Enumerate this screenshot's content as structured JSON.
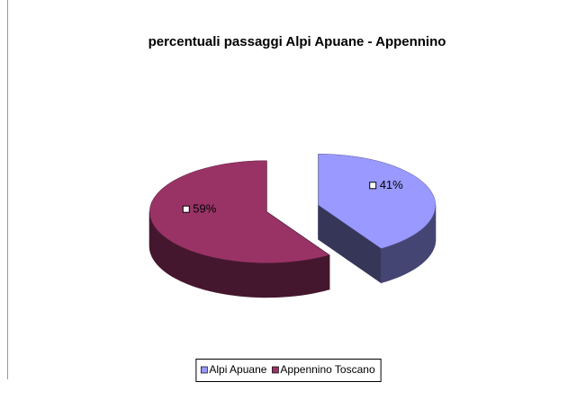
{
  "chart_data": {
    "type": "pie3d",
    "title": "percentuali passaggi Alpi Apuane - Appennino",
    "categories": [
      "Alpi Apuane",
      "Appennino Toscano"
    ],
    "values": [
      41,
      59
    ],
    "value_labels": [
      "41%",
      "59%"
    ],
    "colors": [
      "#9999ff",
      "#993366"
    ],
    "legend": "bottom"
  }
}
